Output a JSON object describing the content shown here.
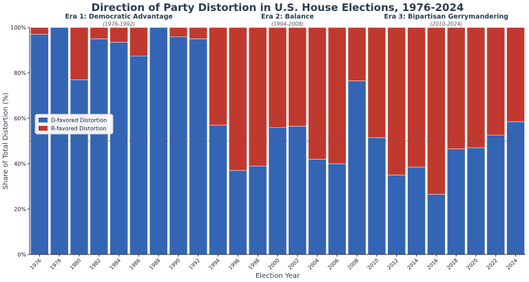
{
  "chart_data": {
    "type": "bar",
    "stacked": true,
    "title": "Direction of Party Distortion in U.S. House Elections, 1976-2024",
    "xlabel": "Election Year",
    "ylabel": "Share of Total Distortion (%)",
    "ylim": [
      0,
      100
    ],
    "y_ticks": [
      "0%",
      "20%",
      "40%",
      "60%",
      "80%",
      "100%"
    ],
    "reference_line": 50,
    "grid": false,
    "legend_placement": "center-left",
    "categories": [
      "1976",
      "1978",
      "1980",
      "1982",
      "1984",
      "1986",
      "1988",
      "1990",
      "1992",
      "1994",
      "1996",
      "1998",
      "2000",
      "2002",
      "2004",
      "2006",
      "2008",
      "2010",
      "2012",
      "2014",
      "2016",
      "2018",
      "2020",
      "2022",
      "2024"
    ],
    "series": [
      {
        "name": "D-favored Distortion",
        "color": "#3465b4",
        "values": [
          97,
          100,
          77,
          95,
          93.5,
          87.5,
          100,
          96,
          95,
          57,
          37,
          39,
          56,
          56.5,
          42,
          40,
          76.5,
          51.5,
          35,
          38.5,
          26.5,
          46.5,
          47,
          52.5,
          58.5
        ]
      },
      {
        "name": "R-favored Distortion",
        "color": "#c0392f",
        "values": [
          3,
          0,
          23,
          5,
          6.5,
          12.5,
          0,
          4,
          5,
          43,
          63,
          61,
          44,
          43.5,
          58,
          60,
          23.5,
          48.5,
          65,
          61.5,
          73.5,
          53.5,
          53,
          47.5,
          41.5
        ]
      }
    ],
    "eras": [
      {
        "title": "Era 1: Democratic Advantage",
        "subtitle": "(1976-1992)",
        "start": "1976",
        "end": "1992"
      },
      {
        "title": "Era 2: Balance",
        "subtitle": "(1994-2008)",
        "start": "1994",
        "end": "2008"
      },
      {
        "title": "Era 3: Bipartisan Gerrymandering",
        "subtitle": "(2010-2024)",
        "start": "2010",
        "end": "2024"
      }
    ]
  }
}
